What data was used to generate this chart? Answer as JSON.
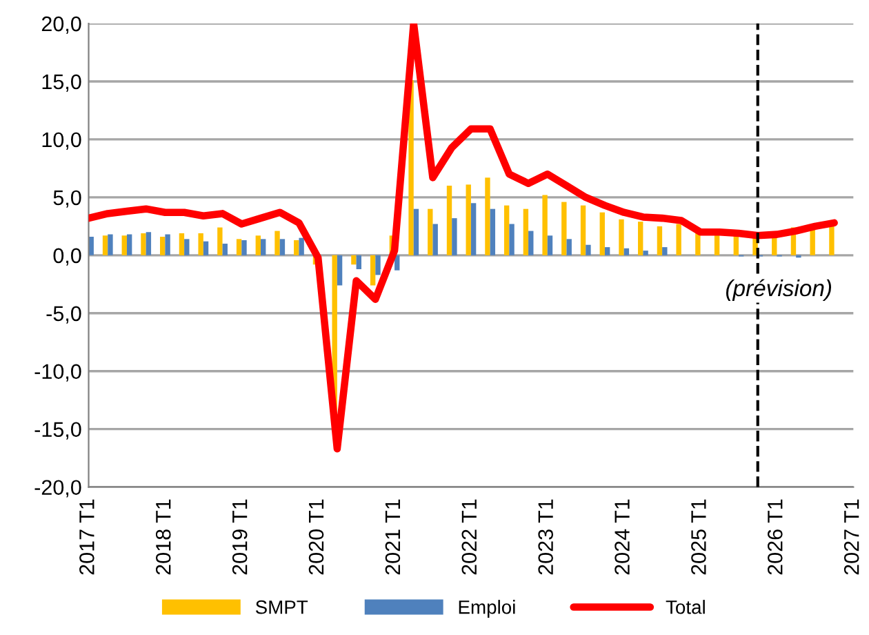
{
  "chart_data": {
    "type": "bar",
    "x": [
      "2017-01",
      "2017-04",
      "2017-07",
      "2017-10",
      "2018-01",
      "2018-04",
      "2018-07",
      "2018-10",
      "2019-01",
      "2019-04",
      "2019-07",
      "2019-10",
      "2020-01",
      "2020-04",
      "2020-07",
      "2020-10",
      "2021-01",
      "2021-04",
      "2021-07",
      "2021-10",
      "2022-01",
      "2022-04",
      "2022-07",
      "2022-10",
      "2023-01",
      "2023-04",
      "2023-07",
      "2023-10",
      "2024-01",
      "2024-04",
      "2024-07",
      "2024-10",
      "2025-01",
      "2025-04",
      "2025-07",
      "2025-10",
      "2026-01",
      "2026-04",
      "2026-07",
      "2026-10"
    ],
    "series": [
      {
        "name": "SMPT",
        "color": "#ffc000",
        "values": [
          null,
          1.7,
          1.7,
          1.9,
          1.6,
          1.9,
          1.9,
          2.4,
          1.4,
          1.7,
          2.1,
          1.3,
          -0.8,
          -14.0,
          -0.8,
          -2.6,
          1.7,
          15.1,
          4.0,
          6.0,
          6.1,
          6.7,
          4.3,
          4.0,
          5.2,
          4.6,
          4.3,
          3.7,
          3.1,
          2.9,
          2.5,
          2.7,
          2.0,
          1.8,
          1.8,
          1.6,
          1.8,
          2.4,
          2.4,
          2.6
        ]
      },
      {
        "name": "Emploi",
        "color": "#4f81bd",
        "values": [
          1.6,
          1.8,
          1.8,
          2.0,
          1.8,
          1.4,
          1.2,
          1.0,
          1.3,
          1.4,
          1.4,
          1.5,
          null,
          -2.6,
          -1.2,
          -1.7,
          -1.3,
          4.0,
          2.7,
          3.2,
          4.5,
          4.0,
          2.7,
          2.1,
          1.7,
          1.4,
          0.9,
          0.7,
          0.6,
          0.4,
          0.7,
          0.0,
          0.0,
          0.0,
          -0.1,
          -0.1,
          -0.1,
          -0.2,
          0.0,
          0.0
        ]
      },
      {
        "name": "Total",
        "color": "#ff0000",
        "type": "line",
        "values": [
          3.2,
          3.6,
          3.8,
          4.0,
          3.7,
          3.7,
          3.4,
          3.6,
          2.7,
          3.2,
          3.7,
          2.8,
          -0.2,
          -16.7,
          -2.2,
          -3.8,
          0.4,
          20.0,
          6.7,
          9.3,
          10.9,
          10.9,
          7.0,
          6.2,
          7.0,
          6.0,
          5.0,
          4.3,
          3.7,
          3.3,
          3.2,
          3.0,
          2.0,
          2.0,
          1.9,
          1.7,
          1.8,
          2.1,
          2.5,
          2.8
        ]
      }
    ],
    "xlim": [
      "2017-01",
      "2027-01"
    ],
    "xticks": [
      {
        "value": "2017-01",
        "label": "2017 T1"
      },
      {
        "value": "2018-01",
        "label": "2018 T1"
      },
      {
        "value": "2019-01",
        "label": "2019 T1"
      },
      {
        "value": "2020-01",
        "label": "2020 T1"
      },
      {
        "value": "2021-01",
        "label": "2021 T1"
      },
      {
        "value": "2022-01",
        "label": "2022 T1"
      },
      {
        "value": "2023-01",
        "label": "2023 T1"
      },
      {
        "value": "2024-01",
        "label": "2024 T1"
      },
      {
        "value": "2025-01",
        "label": "2025 T1"
      },
      {
        "value": "2026-01",
        "label": "2026 T1"
      },
      {
        "value": "2027-01",
        "label": "2027 T1"
      }
    ],
    "ylim": [
      -20,
      20
    ],
    "yticks": [
      {
        "value": -20,
        "label": "-20,0"
      },
      {
        "value": -15,
        "label": "-15,0"
      },
      {
        "value": -10,
        "label": "-10,0"
      },
      {
        "value": -5,
        "label": "-5,0"
      },
      {
        "value": 0,
        "label": "0,0"
      },
      {
        "value": 5,
        "label": "5,0"
      },
      {
        "value": 10,
        "label": "10,0"
      },
      {
        "value": 15,
        "label": "15,0"
      },
      {
        "value": 20,
        "label": "20,0"
      }
    ],
    "grid": "y",
    "legend": "bottom",
    "line_style": "solid",
    "marker": "none",
    "ref_lines": [
      {
        "axis": "x",
        "value": "2025-10",
        "label": "(prévision)",
        "color": "#000000",
        "line_style": "dashed"
      }
    ]
  }
}
